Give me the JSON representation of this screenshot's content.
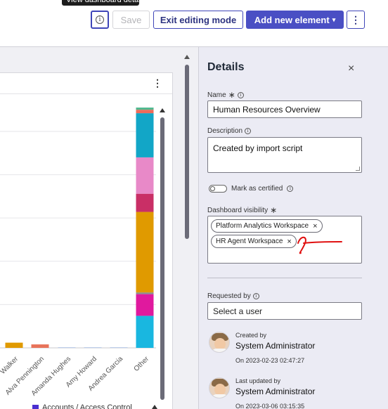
{
  "toolbar": {
    "tooltip": "View dashboard details",
    "save_label": "Save",
    "exit_label": "Exit editing mode",
    "add_label": "Add new element",
    "add_caret": "▾",
    "more_label": "⋮",
    "info_glyph": "i"
  },
  "card": {
    "kebab": "⋮"
  },
  "chart_data": {
    "type": "bar",
    "categories": [
      "Walker",
      "Alva Pennington",
      "Amanda Hughes",
      "Amy Howard",
      "Andrea Garcia",
      "Other"
    ],
    "series": [
      {
        "name": "Accounts / Access Control",
        "color": "#4a2fd0",
        "values": [
          0,
          0,
          0,
          0,
          0,
          0
        ]
      }
    ],
    "stacks": {
      "Walker": [
        {
          "value": 1.2,
          "color": "#e09a00"
        }
      ],
      "Alva Pennington": [
        {
          "value": 0.8,
          "color": "#e8735a"
        }
      ],
      "Amanda Hughes": [
        {
          "value": 0.15,
          "color": "#b8c9e8"
        }
      ],
      "Amy Howard": [
        {
          "value": 0.15,
          "color": "#b8c9e8"
        }
      ],
      "Andrea Garcia": [
        {
          "value": 0.15,
          "color": "#b8c9e8"
        }
      ],
      "Other": [
        {
          "value": 7.4,
          "color": "#19b7e0"
        },
        {
          "value": 5.0,
          "color": "#e0199e"
        },
        {
          "value": 0.4,
          "color": "#8c8c8c"
        },
        {
          "value": 18.6,
          "color": "#e09a00"
        },
        {
          "value": 4.2,
          "color": "#c92f66"
        },
        {
          "value": 8.4,
          "color": "#e889c8"
        },
        {
          "value": 10.2,
          "color": "#12a6c7"
        },
        {
          "value": 0.8,
          "color": "#ee6b5a"
        },
        {
          "value": 0.5,
          "color": "#4fb88d"
        }
      ]
    },
    "ylim": [
      0,
      56
    ],
    "grid": true,
    "legend_position": "bottom"
  },
  "legend": {
    "label": "Accounts / Access Control"
  },
  "details": {
    "title": "Details",
    "close_glyph": "×",
    "name_label": "Name",
    "name_value": "Human Resources Overview",
    "description_label": "Description",
    "description_value": "Created by import script",
    "certified_label": "Mark as certified",
    "visibility_label": "Dashboard visibility",
    "visibility_chips": [
      "Platform Analytics Workspace",
      "HR Agent Workspace"
    ],
    "chip_remove_glyph": "×",
    "requested_by_label": "Requested by",
    "requested_by_placeholder": "Select a user",
    "created_by_label": "Created by",
    "created_by_name": "System Administrator",
    "created_on": "On 2023-02-23 02:47:27",
    "updated_by_label": "Last updated by",
    "updated_by_name": "System Administrator",
    "updated_on": "On 2023-03-06 03:15:35",
    "required_glyph": "∗",
    "info_glyph": "i"
  }
}
